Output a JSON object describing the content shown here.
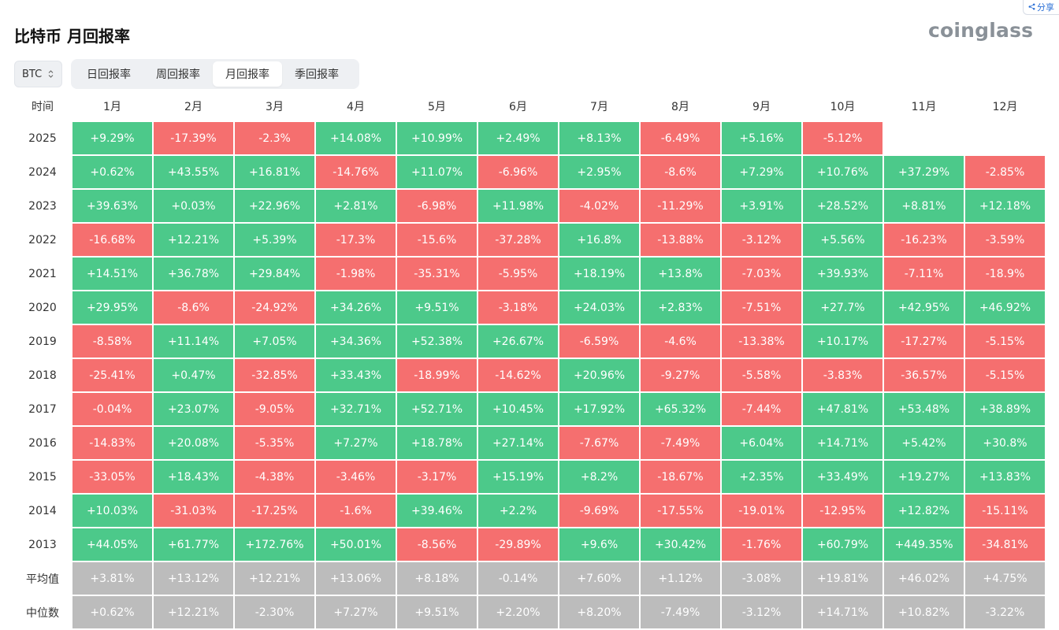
{
  "share": {
    "label": "分享"
  },
  "header": {
    "title": "比特币 月回报率",
    "logo": "coinglass"
  },
  "coin_select": {
    "value": "BTC"
  },
  "tabs": [
    "日回报率",
    "周回报率",
    "月回报率",
    "季回报率"
  ],
  "active_tab": 2,
  "colors": {
    "positive": "#4cc98a",
    "negative": "#f56f6f",
    "stat": "#bcbcbc"
  },
  "table": {
    "corner": "时间",
    "months": [
      "1月",
      "2月",
      "3月",
      "4月",
      "5月",
      "6月",
      "7月",
      "8月",
      "9月",
      "10月",
      "11月",
      "12月"
    ],
    "rows": [
      {
        "label": "2025",
        "type": "year",
        "values": [
          "+9.29%",
          "-17.39%",
          "-2.3%",
          "+14.08%",
          "+10.99%",
          "+2.49%",
          "+8.13%",
          "-6.49%",
          "+5.16%",
          "-5.12%",
          "",
          ""
        ]
      },
      {
        "label": "2024",
        "type": "year",
        "values": [
          "+0.62%",
          "+43.55%",
          "+16.81%",
          "-14.76%",
          "+11.07%",
          "-6.96%",
          "+2.95%",
          "-8.6%",
          "+7.29%",
          "+10.76%",
          "+37.29%",
          "-2.85%"
        ]
      },
      {
        "label": "2023",
        "type": "year",
        "values": [
          "+39.63%",
          "+0.03%",
          "+22.96%",
          "+2.81%",
          "-6.98%",
          "+11.98%",
          "-4.02%",
          "-11.29%",
          "+3.91%",
          "+28.52%",
          "+8.81%",
          "+12.18%"
        ]
      },
      {
        "label": "2022",
        "type": "year",
        "values": [
          "-16.68%",
          "+12.21%",
          "+5.39%",
          "-17.3%",
          "-15.6%",
          "-37.28%",
          "+16.8%",
          "-13.88%",
          "-3.12%",
          "+5.56%",
          "-16.23%",
          "-3.59%"
        ]
      },
      {
        "label": "2021",
        "type": "year",
        "values": [
          "+14.51%",
          "+36.78%",
          "+29.84%",
          "-1.98%",
          "-35.31%",
          "-5.95%",
          "+18.19%",
          "+13.8%",
          "-7.03%",
          "+39.93%",
          "-7.11%",
          "-18.9%"
        ]
      },
      {
        "label": "2020",
        "type": "year",
        "values": [
          "+29.95%",
          "-8.6%",
          "-24.92%",
          "+34.26%",
          "+9.51%",
          "-3.18%",
          "+24.03%",
          "+2.83%",
          "-7.51%",
          "+27.7%",
          "+42.95%",
          "+46.92%"
        ]
      },
      {
        "label": "2019",
        "type": "year",
        "values": [
          "-8.58%",
          "+11.14%",
          "+7.05%",
          "+34.36%",
          "+52.38%",
          "+26.67%",
          "-6.59%",
          "-4.6%",
          "-13.38%",
          "+10.17%",
          "-17.27%",
          "-5.15%"
        ]
      },
      {
        "label": "2018",
        "type": "year",
        "values": [
          "-25.41%",
          "+0.47%",
          "-32.85%",
          "+33.43%",
          "-18.99%",
          "-14.62%",
          "+20.96%",
          "-9.27%",
          "-5.58%",
          "-3.83%",
          "-36.57%",
          "-5.15%"
        ]
      },
      {
        "label": "2017",
        "type": "year",
        "values": [
          "-0.04%",
          "+23.07%",
          "-9.05%",
          "+32.71%",
          "+52.71%",
          "+10.45%",
          "+17.92%",
          "+65.32%",
          "-7.44%",
          "+47.81%",
          "+53.48%",
          "+38.89%"
        ]
      },
      {
        "label": "2016",
        "type": "year",
        "values": [
          "-14.83%",
          "+20.08%",
          "-5.35%",
          "+7.27%",
          "+18.78%",
          "+27.14%",
          "-7.67%",
          "-7.49%",
          "+6.04%",
          "+14.71%",
          "+5.42%",
          "+30.8%"
        ]
      },
      {
        "label": "2015",
        "type": "year",
        "values": [
          "-33.05%",
          "+18.43%",
          "-4.38%",
          "-3.46%",
          "-3.17%",
          "+15.19%",
          "+8.2%",
          "-18.67%",
          "+2.35%",
          "+33.49%",
          "+19.27%",
          "+13.83%"
        ]
      },
      {
        "label": "2014",
        "type": "year",
        "values": [
          "+10.03%",
          "-31.03%",
          "-17.25%",
          "-1.6%",
          "+39.46%",
          "+2.2%",
          "-9.69%",
          "-17.55%",
          "-19.01%",
          "-12.95%",
          "+12.82%",
          "-15.11%"
        ]
      },
      {
        "label": "2013",
        "type": "year",
        "values": [
          "+44.05%",
          "+61.77%",
          "+172.76%",
          "+50.01%",
          "-8.56%",
          "-29.89%",
          "+9.6%",
          "+30.42%",
          "-1.76%",
          "+60.79%",
          "+449.35%",
          "-34.81%"
        ]
      },
      {
        "label": "平均值",
        "type": "stat",
        "values": [
          "+3.81%",
          "+13.12%",
          "+12.21%",
          "+13.06%",
          "+8.18%",
          "-0.14%",
          "+7.60%",
          "+1.12%",
          "-3.08%",
          "+19.81%",
          "+46.02%",
          "+4.75%"
        ]
      },
      {
        "label": "中位数",
        "type": "stat",
        "values": [
          "+0.62%",
          "+12.21%",
          "-2.30%",
          "+7.27%",
          "+9.51%",
          "+2.20%",
          "+8.20%",
          "-7.49%",
          "-3.12%",
          "+14.71%",
          "+10.82%",
          "-3.22%"
        ]
      }
    ]
  }
}
